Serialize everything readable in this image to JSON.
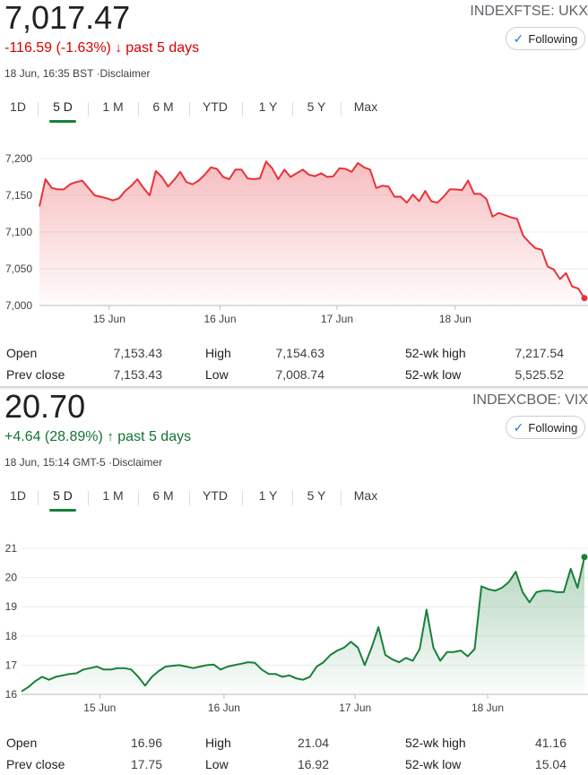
{
  "panels": [
    {
      "price": "7,017.47",
      "ticker": "INDEXFTSE: UKX",
      "change_text": "-116.59 (-1.63%)",
      "change_arrow": "↓",
      "change_period": "past 5 days",
      "direction": "down",
      "timestamp": "18 Jun, 16:35 BST",
      "disclaimer": "·Disclaimer",
      "follow_label": "Following",
      "tabs": [
        "1D",
        "5 D",
        "1 M",
        "6 M",
        "YTD",
        "1 Y",
        "5 Y",
        "Max"
      ],
      "selected_tab": "5 D",
      "stats": {
        "open_label": "Open",
        "open": "7,153.43",
        "prev_close_label": "Prev close",
        "prev_close": "7,153.43",
        "high_label": "High",
        "high": "7,154.63",
        "low_label": "Low",
        "low": "7,008.74",
        "wk52_high_label": "52-wk high",
        "wk52_high": "7,217.54",
        "wk52_low_label": "52-wk low",
        "wk52_low": "5,525.52"
      }
    },
    {
      "price": "20.70",
      "ticker": "INDEXCBOE: VIX",
      "change_text": "+4.64 (28.89%)",
      "change_arrow": "↑",
      "change_period": "past 5 days",
      "direction": "up",
      "timestamp": "18 Jun, 15:14 GMT-5",
      "disclaimer": "·Disclaimer",
      "follow_label": "Following",
      "tabs": [
        "1D",
        "5 D",
        "1 M",
        "6 M",
        "YTD",
        "1 Y",
        "5 Y",
        "Max"
      ],
      "selected_tab": "5 D",
      "stats": {
        "open_label": "Open",
        "open": "16.96",
        "prev_close_label": "Prev close",
        "prev_close": "17.75",
        "high_label": "High",
        "high": "21.04",
        "low_label": "Low",
        "low": "16.92",
        "wk52_high_label": "52-wk high",
        "wk52_high": "41.16",
        "wk52_low_label": "52-wk low",
        "wk52_low": "15.04"
      }
    }
  ],
  "chart_data": [
    {
      "type": "area",
      "ylim": [
        7000,
        7200
      ],
      "y_ticks": [
        7000,
        7050,
        7100,
        7150,
        7200
      ],
      "y_tick_labels": [
        "7,000",
        "7,050",
        "7,100",
        "7,150",
        "7,200"
      ],
      "x_tick_labels": [
        "15 Jun",
        "16 Jun",
        "17 Jun",
        "18 Jun"
      ],
      "x_tick_index": [
        11.4,
        29.5,
        48.6,
        67.9
      ],
      "color": "#e8333a",
      "grid": true,
      "series": [
        {
          "values": [
            7135,
            7172,
            7160,
            7158,
            7158,
            7165,
            7168,
            7170,
            7160,
            7150,
            7148,
            7146,
            7143,
            7146,
            7156,
            7163,
            7172,
            7160,
            7150,
            7183,
            7175,
            7162,
            7171,
            7182,
            7168,
            7165,
            7170,
            7178,
            7188,
            7186,
            7175,
            7172,
            7185,
            7185,
            7173,
            7172,
            7173,
            7196,
            7187,
            7172,
            7185,
            7175,
            7180,
            7185,
            7178,
            7176,
            7180,
            7175,
            7176,
            7187,
            7186,
            7182,
            7194,
            7188,
            7185,
            7160,
            7163,
            7162,
            7148,
            7148,
            7140,
            7151,
            7142,
            7156,
            7142,
            7140,
            7148,
            7158,
            7158,
            7157,
            7170,
            7152,
            7152,
            7145,
            7121,
            7126,
            7123,
            7120,
            7118,
            7095,
            7086,
            7078,
            7076,
            7053,
            7049,
            7036,
            7044,
            7026,
            7023,
            7010
          ]
        }
      ]
    },
    {
      "type": "area",
      "ylim": [
        16,
        21
      ],
      "y_ticks": [
        16,
        17,
        18,
        19,
        20,
        21
      ],
      "y_tick_labels": [
        "16",
        "17",
        "18",
        "19",
        "20",
        "21"
      ],
      "x_tick_labels": [
        "15 Jun",
        "16 Jun",
        "17 Jun",
        "18 Jun"
      ],
      "x_tick_index": [
        11.4,
        29.5,
        48.6,
        67.9
      ],
      "color": "#188038",
      "grid": true,
      "series": [
        {
          "values": [
            16.1,
            16.25,
            16.45,
            16.6,
            16.5,
            16.6,
            16.65,
            16.7,
            16.72,
            16.85,
            16.9,
            16.95,
            16.85,
            16.85,
            16.9,
            16.9,
            16.85,
            16.6,
            16.3,
            16.6,
            16.8,
            16.95,
            16.98,
            17.0,
            16.95,
            16.9,
            16.95,
            17.0,
            17.02,
            16.85,
            16.95,
            17.0,
            17.05,
            17.1,
            17.08,
            16.85,
            16.7,
            16.7,
            16.6,
            16.65,
            16.55,
            16.5,
            16.6,
            16.95,
            17.1,
            17.35,
            17.5,
            17.6,
            17.8,
            17.6,
            17.0,
            17.6,
            18.3,
            17.35,
            17.2,
            17.1,
            17.25,
            17.15,
            17.55,
            18.9,
            17.6,
            17.15,
            17.45,
            17.45,
            17.5,
            17.3,
            17.55,
            19.7,
            19.6,
            19.55,
            19.65,
            19.85,
            20.2,
            19.5,
            19.15,
            19.5,
            19.55,
            19.55,
            19.5,
            19.5,
            20.3,
            19.65,
            20.7
          ]
        }
      ]
    }
  ]
}
